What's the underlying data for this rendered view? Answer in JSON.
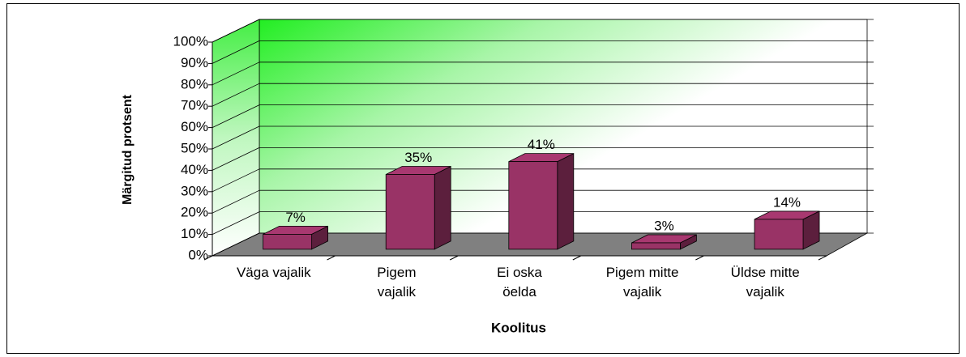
{
  "chart_data": {
    "type": "bar3d",
    "categories": [
      "Väga vajalik",
      "Pigem\nvajalik",
      "Ei oska\nöelda",
      "Pigem mitte\nvajalik",
      "Üldse mitte\nvajalik"
    ],
    "values": [
      7,
      35,
      41,
      3,
      14
    ],
    "value_labels": [
      "7%",
      "35%",
      "41%",
      "3%",
      "14%"
    ],
    "color": "#993366",
    "xlabel": "Koolitus",
    "ylabel": "Märgitud protsent",
    "ylim": [
      0,
      100
    ],
    "yticks": [
      {
        "value": 0,
        "label": "0%"
      },
      {
        "value": 10,
        "label": "10%"
      },
      {
        "value": 20,
        "label": "20%"
      },
      {
        "value": 30,
        "label": "30%"
      },
      {
        "value": 40,
        "label": "40%"
      },
      {
        "value": 50,
        "label": "50%"
      },
      {
        "value": 60,
        "label": "60%"
      },
      {
        "value": 70,
        "label": "70%"
      },
      {
        "value": 80,
        "label": "80%"
      },
      {
        "value": 90,
        "label": "90%"
      },
      {
        "value": 100,
        "label": "100%"
      }
    ],
    "grid": true
  }
}
